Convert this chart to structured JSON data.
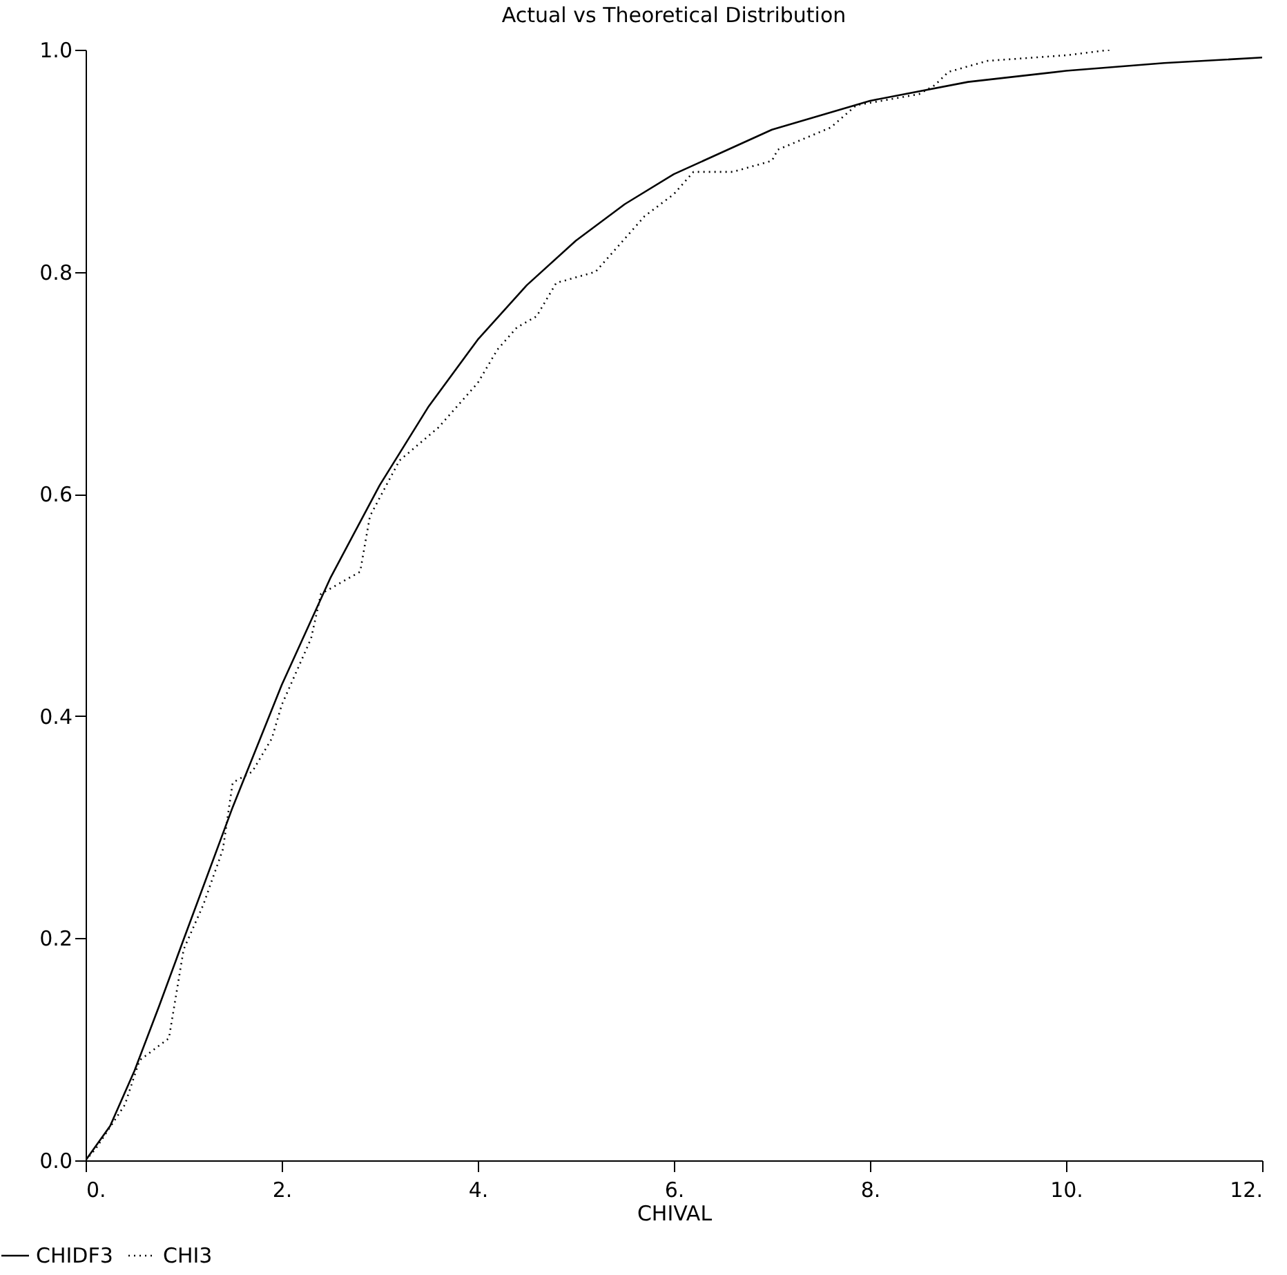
{
  "chart_data": {
    "type": "line",
    "title": "Actual vs Theoretical Distribution",
    "xlabel": "CHIVAL",
    "xlim": [
      0,
      12
    ],
    "xticks": [
      {
        "value": 0,
        "label": "0."
      },
      {
        "value": 2,
        "label": "2."
      },
      {
        "value": 4,
        "label": "4."
      },
      {
        "value": 6,
        "label": "6."
      },
      {
        "value": 8,
        "label": "8."
      },
      {
        "value": 10,
        "label": "10."
      },
      {
        "value": 12,
        "label": "12."
      }
    ],
    "ylim": [
      0,
      1
    ],
    "yticks": [
      {
        "value": 0,
        "label": "0.0"
      },
      {
        "value": 0.2,
        "label": "0.2"
      },
      {
        "value": 0.4,
        "label": "0.4"
      },
      {
        "value": 0.6,
        "label": "0.6"
      },
      {
        "value": 0.8,
        "label": "0.8"
      },
      {
        "value": 1,
        "label": "1.0"
      }
    ],
    "grid": false,
    "legend": "bottom left",
    "series": [
      {
        "name": "CHIDF3",
        "color": "#000000",
        "line_style": "solid",
        "x": [
          0,
          0.25,
          0.5,
          0.75,
          1,
          1.5,
          2,
          2.5,
          3,
          3.5,
          4,
          4.5,
          5,
          5.5,
          6,
          7,
          8,
          9,
          10,
          11,
          12
        ],
        "values": [
          0,
          0.031,
          0.081,
          0.139,
          0.199,
          0.318,
          0.428,
          0.525,
          0.608,
          0.679,
          0.739,
          0.788,
          0.828,
          0.861,
          0.888,
          0.928,
          0.954,
          0.971,
          0.981,
          0.988,
          0.993
        ]
      },
      {
        "name": "CHI3",
        "color": "#000000",
        "line_style": "dotted",
        "x": [
          0,
          0.1,
          0.4,
          0.55,
          0.7,
          0.85,
          1.0,
          1.2,
          1.4,
          1.5,
          1.7,
          1.9,
          2.0,
          2.2,
          2.3,
          2.4,
          2.6,
          2.8,
          2.9,
          3.2,
          3.6,
          3.7,
          4.0,
          4.2,
          4.4,
          4.6,
          4.8,
          5.2,
          5.5,
          5.7,
          6.0,
          6.2,
          6.6,
          7.0,
          7.06,
          7.6,
          7.86,
          8.5,
          8.66,
          8.8,
          9.2,
          10.0,
          10.46
        ],
        "values": [
          0,
          0.01,
          0.05,
          0.09,
          0.1,
          0.11,
          0.19,
          0.23,
          0.28,
          0.34,
          0.35,
          0.38,
          0.41,
          0.45,
          0.47,
          0.51,
          0.52,
          0.53,
          0.58,
          0.63,
          0.66,
          0.67,
          0.7,
          0.73,
          0.75,
          0.76,
          0.79,
          0.8,
          0.83,
          0.85,
          0.87,
          0.89,
          0.89,
          0.9,
          0.91,
          0.93,
          0.95,
          0.96,
          0.968,
          0.98,
          0.99,
          0.995,
          1.0
        ]
      }
    ]
  }
}
